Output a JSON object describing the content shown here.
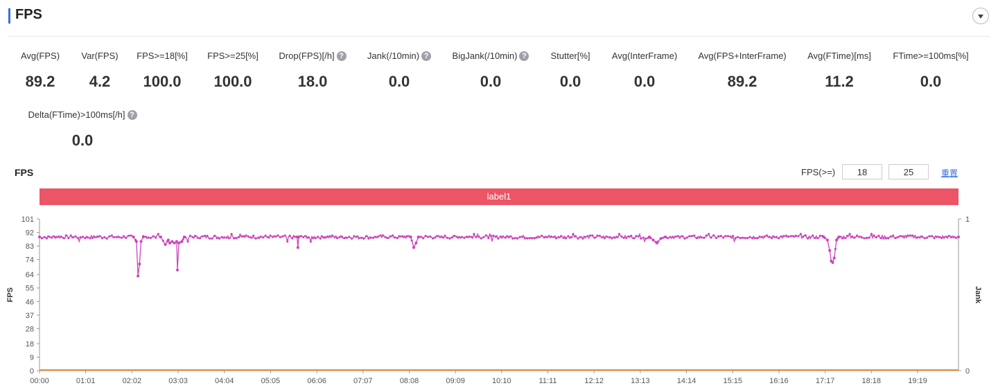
{
  "section": {
    "title": "FPS",
    "accent_color": "#3a6fd8"
  },
  "metrics": [
    {
      "label": "Avg(FPS)",
      "value": "89.2",
      "help": false
    },
    {
      "label": "Var(FPS)",
      "value": "4.2",
      "help": false
    },
    {
      "label": "FPS>=18[%]",
      "value": "100.0",
      "help": false
    },
    {
      "label": "FPS>=25[%]",
      "value": "100.0",
      "help": false
    },
    {
      "label": "Drop(FPS)[/h]",
      "value": "18.0",
      "help": true
    },
    {
      "label": "Jank(/10min)",
      "value": "0.0",
      "help": true
    },
    {
      "label": "BigJank(/10min)",
      "value": "0.0",
      "help": true
    },
    {
      "label": "Stutter[%]",
      "value": "0.0",
      "help": false
    },
    {
      "label": "Avg(InterFrame)",
      "value": "0.0",
      "help": false
    },
    {
      "label": "Avg(FPS+InterFrame)",
      "value": "89.2",
      "help": false
    },
    {
      "label": "Avg(FTime)[ms]",
      "value": "11.2",
      "help": false
    },
    {
      "label": "FTime>=100ms[%]",
      "value": "0.0",
      "help": false
    },
    {
      "label": "Delta(FTime)>100ms[/h]",
      "value": "0.0",
      "help": true
    }
  ],
  "chart_panel": {
    "title": "FPS",
    "threshold_label": "FPS(>=)",
    "threshold_low": "18",
    "threshold_high": "25",
    "reset_label": "重置",
    "label_band_text": "label1",
    "label_band_color": "#ec5565"
  },
  "chart_data": {
    "type": "line",
    "ylabel": "FPS",
    "y2label": "Jank",
    "ylim": [
      0,
      101
    ],
    "y2lim": [
      0,
      1
    ],
    "yticks": [
      "0",
      "9",
      "18",
      "28",
      "37",
      "46",
      "55",
      "64",
      "74",
      "83",
      "92",
      "101"
    ],
    "y2ticks": [
      "0",
      "1"
    ],
    "xlim_seconds": [
      0,
      1213
    ],
    "xticks": [
      "00:00",
      "01:01",
      "02:02",
      "03:03",
      "04:04",
      "05:05",
      "06:06",
      "07:07",
      "08:08",
      "09:09",
      "10:10",
      "11:11",
      "12:12",
      "13:13",
      "14:14",
      "15:15",
      "16:16",
      "17:17",
      "18:18",
      "19:19"
    ],
    "series": [
      {
        "color": "#cc44bb",
        "baseline": 89,
        "points": [
          [
            0,
            89
          ],
          [
            124,
            89
          ],
          [
            128,
            86
          ],
          [
            130,
            63
          ],
          [
            132,
            71
          ],
          [
            134,
            86
          ],
          [
            137,
            89
          ],
          [
            160,
            89
          ],
          [
            166,
            84
          ],
          [
            170,
            87
          ],
          [
            172,
            85
          ],
          [
            175,
            86
          ],
          [
            178,
            85
          ],
          [
            181,
            86
          ],
          [
            182,
            67
          ],
          [
            184,
            85
          ],
          [
            188,
            86
          ],
          [
            191,
            89
          ],
          [
            340,
            89
          ],
          [
            341,
            82
          ],
          [
            342,
            89
          ],
          [
            490,
            89
          ],
          [
            494,
            82
          ],
          [
            497,
            85
          ],
          [
            500,
            89
          ],
          [
            805,
            89
          ],
          [
            810,
            87
          ],
          [
            815,
            85
          ],
          [
            820,
            88
          ],
          [
            826,
            89
          ],
          [
            1035,
            89
          ],
          [
            1040,
            87
          ],
          [
            1043,
            80
          ],
          [
            1045,
            73
          ],
          [
            1047,
            72
          ],
          [
            1049,
            75
          ],
          [
            1052,
            87
          ],
          [
            1055,
            89
          ],
          [
            1213,
            89
          ]
        ]
      },
      {
        "color": "#e8903a",
        "points": [
          [
            0,
            0
          ],
          [
            1213,
            0
          ]
        ]
      }
    ]
  },
  "watermark": ""
}
